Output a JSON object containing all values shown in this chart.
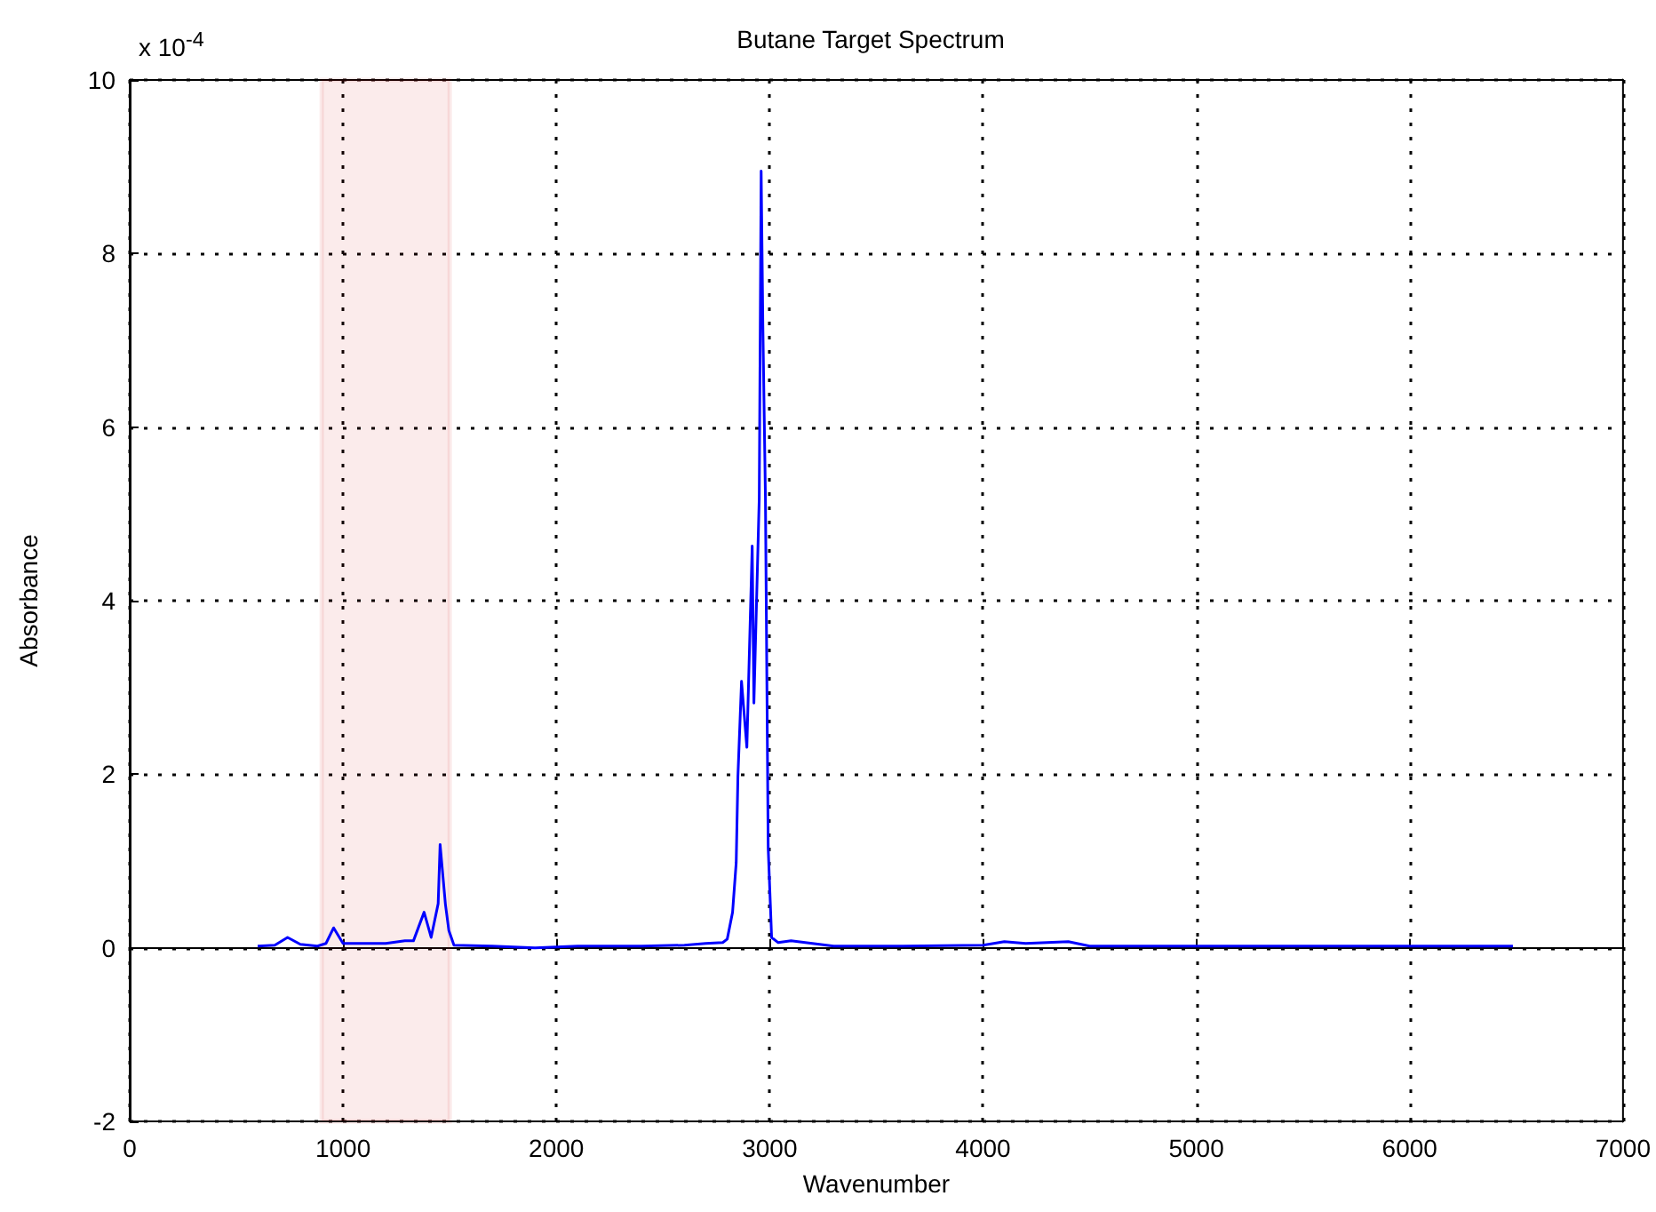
{
  "chart_data": {
    "type": "line",
    "title": "Butane Target Spectrum",
    "xlabel": "Wavenumber",
    "ylabel": "Absorbance",
    "annotations": [
      "x 10$^{-4}$"
    ],
    "series": [
      {
        "color": "#0000ff",
        "x": [
          600,
          680,
          740,
          800,
          880,
          920,
          956,
          1000,
          1100,
          1200,
          1290,
          1330,
          1380,
          1413,
          1446,
          1455,
          1480,
          1496,
          1520,
          1700,
          1900,
          2100,
          2400,
          2600,
          2700,
          2780,
          2801,
          2826,
          2843,
          2851,
          2868,
          2893,
          2918,
          2926,
          2951,
          2960,
          2968,
          2980,
          2993,
          3009,
          3040,
          3100,
          3200,
          3300,
          3600,
          4000,
          4100,
          4200,
          4400,
          4500,
          5000,
          5500,
          6000,
          6484
        ],
        "values": [
          0.02,
          0.03,
          0.12,
          0.04,
          0.02,
          0.05,
          0.23,
          0.05,
          0.05,
          0.05,
          0.08,
          0.08,
          0.41,
          0.12,
          0.51,
          1.19,
          0.5,
          0.2,
          0.03,
          0.02,
          0.0,
          0.02,
          0.02,
          0.03,
          0.05,
          0.06,
          0.1,
          0.41,
          0.98,
          1.97,
          3.07,
          2.31,
          4.63,
          2.82,
          5.18,
          8.95,
          7.17,
          5.2,
          1.15,
          0.12,
          0.06,
          0.08,
          0.05,
          0.02,
          0.02,
          0.03,
          0.07,
          0.05,
          0.07,
          0.02,
          0.02,
          0.02,
          0.02,
          0.02
        ]
      }
    ],
    "xlim": [
      0,
      7000
    ],
    "xticks": [
      0,
      1000,
      2000,
      3000,
      4000,
      5000,
      6000,
      7000
    ],
    "ylim": [
      -2,
      10
    ],
    "yticks": [
      -2,
      0,
      2,
      4,
      6,
      8,
      10
    ],
    "grid": true,
    "marker": "none",
    "line_style": "solid",
    "bands": [
      {
        "axis": "x",
        "from": 900,
        "to": 1500,
        "color": "#cc0000"
      }
    ]
  }
}
